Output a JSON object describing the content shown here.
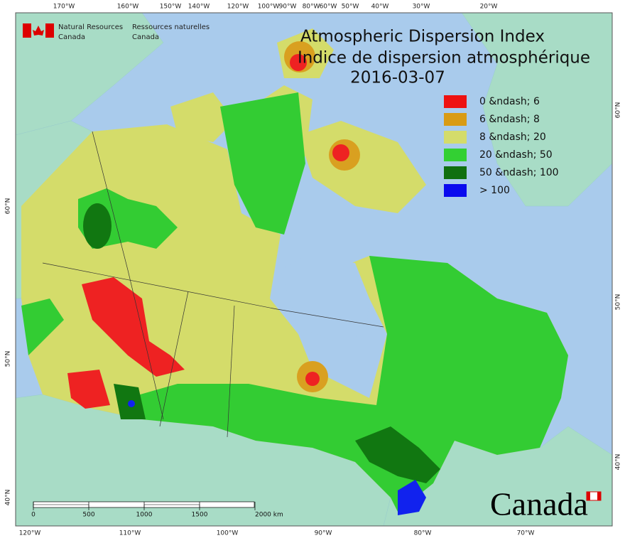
{
  "header": {
    "agency_en": [
      "Natural Resources",
      "Canada"
    ],
    "agency_fr": [
      "Ressources naturelles",
      "Canada"
    ]
  },
  "title": [
    "Atmospheric Dispersion Index",
    "Indice de dispersion atmosphérique",
    "2016-03-07"
  ],
  "legend": [
    {
      "label": "0 &ndash; 6",
      "color": "#ee1111"
    },
    {
      "label": "6 &ndash; 8",
      "color": "#d99b14"
    },
    {
      "label": "8 &ndash; 20",
      "color": "#d4dc6a"
    },
    {
      "label": "20 &ndash; 50",
      "color": "#33d033"
    },
    {
      "label": "50 &ndash; 100",
      "color": "#107010"
    },
    {
      "label": "> 100",
      "color": "#0a0aee"
    }
  ],
  "graticule": {
    "top": [
      "170°W",
      "160°W",
      "150°W",
      "140°W",
      "120°W",
      "100°W",
      "90°W",
      "80°W",
      "60°W",
      "50°W",
      "40°W",
      "30°W",
      "20°W"
    ],
    "bottom": [
      "120°W",
      "110°W",
      "100°W",
      "90°W",
      "80°W",
      "70°W"
    ],
    "left": [
      "60°N",
      "50°N",
      "40°N"
    ],
    "right": [
      "60°N",
      "50°N",
      "40°N"
    ]
  },
  "scale_bar": [
    "0",
    "500",
    "1000",
    "1500",
    "2000 km"
  ],
  "wordmark": "Canada"
}
